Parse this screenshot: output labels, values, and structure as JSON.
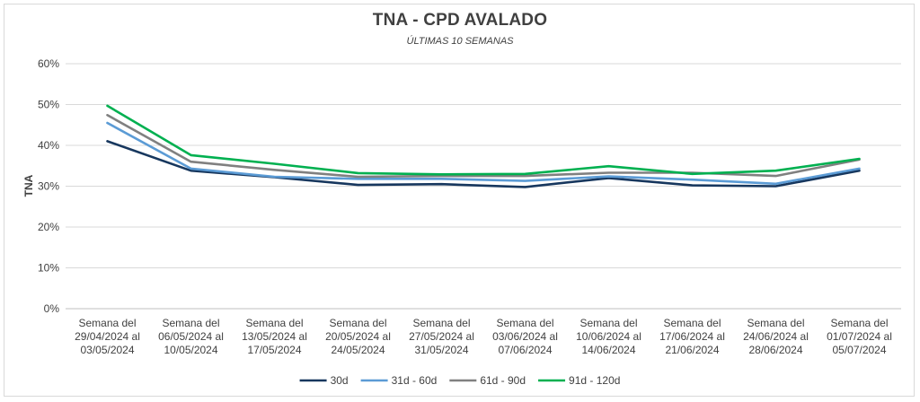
{
  "chart_data": {
    "type": "line",
    "title": "TNA - CPD AVALADO",
    "subtitle": "ÚLTIMAS 10 SEMANAS",
    "ylabel": "TNA",
    "xlabel": "",
    "ylim": [
      0,
      60
    ],
    "yticks": [
      "0%",
      "10%",
      "20%",
      "30%",
      "40%",
      "50%",
      "60%"
    ],
    "grid": true,
    "legend_position": "bottom",
    "categories": [
      [
        "Semana del",
        "29/04/2024 al",
        "03/05/2024"
      ],
      [
        "Semana del",
        "06/05/2024 al",
        "10/05/2024"
      ],
      [
        "Semana del",
        "13/05/2024 al",
        "17/05/2024"
      ],
      [
        "Semana del",
        "20/05/2024 al",
        "24/05/2024"
      ],
      [
        "Semana del",
        "27/05/2024 al",
        "31/05/2024"
      ],
      [
        "Semana del",
        "03/06/2024 al",
        "07/06/2024"
      ],
      [
        "Semana del",
        "10/06/2024 al",
        "14/06/2024"
      ],
      [
        "Semana del",
        "17/06/2024 al",
        "21/06/2024"
      ],
      [
        "Semana del",
        "24/06/2024 al",
        "28/06/2024"
      ],
      [
        "Semana del",
        "01/07/2024 al",
        "05/07/2024"
      ]
    ],
    "series": [
      {
        "name": "30d",
        "color": "#17375e",
        "values": [
          41.0,
          33.8,
          32.2,
          30.3,
          30.5,
          29.8,
          32.0,
          30.2,
          30.0,
          33.8
        ]
      },
      {
        "name": "31d - 60d",
        "color": "#5b9bd5",
        "values": [
          45.5,
          34.3,
          32.3,
          31.8,
          31.8,
          31.3,
          32.4,
          31.6,
          30.6,
          34.3
        ]
      },
      {
        "name": "61d - 90d",
        "color": "#808080",
        "values": [
          47.4,
          36.0,
          34.0,
          32.3,
          32.5,
          32.5,
          33.3,
          33.3,
          32.5,
          36.5
        ]
      },
      {
        "name": "91d - 120d",
        "color": "#00b050",
        "values": [
          49.7,
          37.6,
          35.5,
          33.2,
          32.9,
          33.0,
          34.9,
          33.0,
          33.8,
          36.7
        ]
      }
    ]
  }
}
